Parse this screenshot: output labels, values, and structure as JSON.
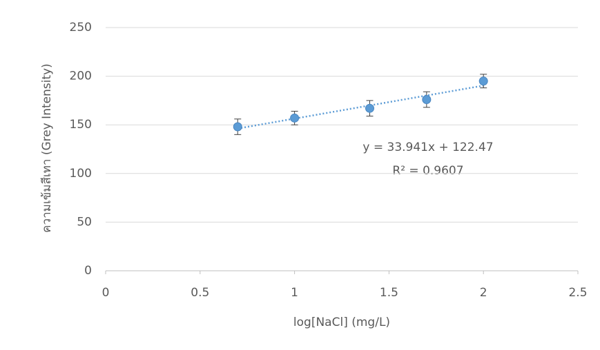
{
  "chart_data": {
    "type": "scatter",
    "x_label": "log[NaCl] (mg/L)",
    "y_label": "ความเข้มสีเทา  (Grey Intensity)",
    "x": [
      0.699,
      1,
      1.398,
      1.699,
      2
    ],
    "values": [
      148,
      157,
      167,
      176,
      195
    ],
    "errors": [
      8,
      7,
      8,
      8,
      7
    ],
    "color": "#5b9bd5",
    "error_color": "#404040",
    "xlim": [
      0,
      2.5
    ],
    "xticks": [
      0,
      0.5,
      1,
      1.5,
      2,
      2.5
    ],
    "ylim": [
      0,
      250
    ],
    "yticks": [
      0,
      50,
      100,
      150,
      200,
      250
    ],
    "grid": true,
    "trendline": {
      "equation": "y = 33.941x + 122.47",
      "r_squared": "R² = 0.9607",
      "slope": 33.941,
      "intercept": 122.47
    }
  }
}
